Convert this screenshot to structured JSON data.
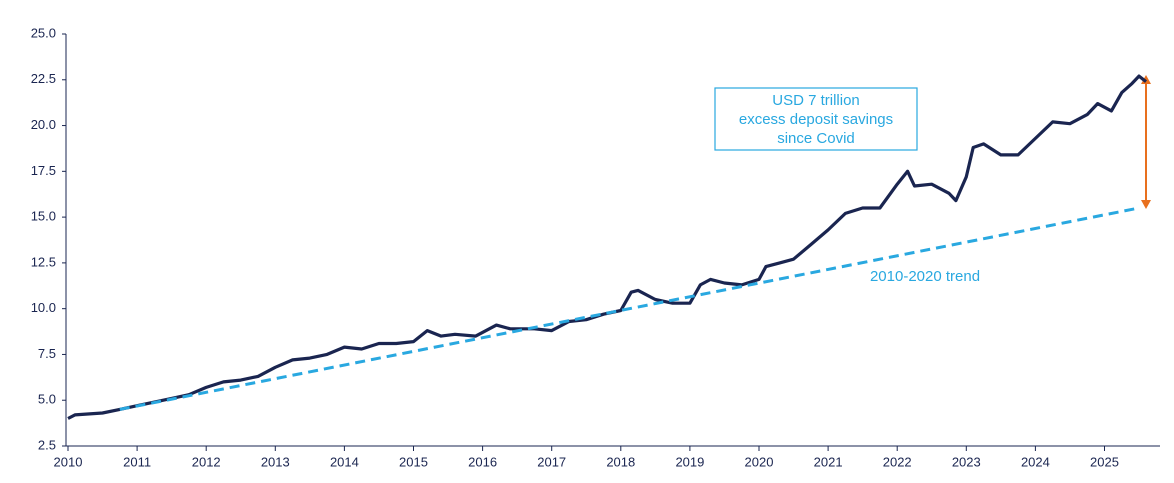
{
  "chart_data": {
    "type": "line",
    "xlim": [
      2010,
      2025.75
    ],
    "xticks": [
      2010,
      2011,
      2012,
      2013,
      2014,
      2015,
      2016,
      2017,
      2018,
      2019,
      2020,
      2021,
      2022,
      2023,
      2024,
      2025
    ],
    "ylim": [
      2.5,
      25
    ],
    "yticks": [
      2.5,
      {
        "value": 5,
        "label": "5.0"
      },
      7.5,
      {
        "value": 10,
        "label": "10.0"
      },
      12.5,
      {
        "value": 15,
        "label": "15.0"
      },
      17.5,
      {
        "value": 20,
        "label": "20.0"
      },
      22.5,
      {
        "value": 25,
        "label": "25.0"
      }
    ],
    "annotation": [
      "USD 7 trillion",
      "excess deposit savings",
      "since Covid"
    ],
    "series": [
      {
        "color": "#1a2550",
        "dashed": false,
        "x": [
          2010.0,
          2010.1,
          2010.5,
          2010.75,
          2011.0,
          2011.25,
          2011.5,
          2011.75,
          2012.0,
          2012.25,
          2012.5,
          2012.75,
          2013.0,
          2013.25,
          2013.5,
          2013.75,
          2014.0,
          2014.25,
          2014.5,
          2014.75,
          2015.0,
          2015.2,
          2015.4,
          2015.6,
          2015.9,
          2016.2,
          2016.4,
          2016.75,
          2017.0,
          2017.25,
          2017.5,
          2017.75,
          2018.0,
          2018.15,
          2018.25,
          2018.5,
          2018.75,
          2019.0,
          2019.15,
          2019.3,
          2019.5,
          2019.75,
          2020.0,
          2020.1,
          2020.3,
          2020.5,
          2020.75,
          2021.0,
          2021.25,
          2021.5,
          2021.75,
          2022.0,
          2022.15,
          2022.25,
          2022.5,
          2022.75,
          2022.85,
          2023.0,
          2023.1,
          2023.25,
          2023.5,
          2023.75,
          2024.0,
          2024.25,
          2024.5,
          2024.75,
          2024.9,
          2025.1,
          2025.25,
          2025.4,
          2025.5,
          2025.6
        ],
        "values": [
          4.0,
          4.2,
          4.3,
          4.5,
          4.7,
          4.9,
          5.1,
          5.3,
          5.7,
          6.0,
          6.1,
          6.3,
          6.8,
          7.2,
          7.3,
          7.5,
          7.9,
          7.8,
          8.1,
          8.1,
          8.2,
          8.8,
          8.5,
          8.6,
          8.5,
          9.1,
          8.9,
          8.9,
          8.8,
          9.3,
          9.4,
          9.7,
          9.9,
          10.9,
          11.0,
          10.5,
          10.3,
          10.3,
          11.3,
          11.6,
          11.4,
          11.3,
          11.6,
          12.3,
          12.5,
          12.7,
          13.5,
          14.3,
          15.2,
          15.5,
          15.5,
          16.8,
          17.5,
          16.7,
          16.8,
          16.3,
          15.9,
          17.2,
          18.8,
          19.0,
          18.4,
          18.4,
          19.3,
          20.2,
          20.1,
          20.6,
          21.2,
          20.8,
          21.8,
          22.3,
          22.7,
          22.4
        ]
      },
      {
        "name": "2010-2020 trend",
        "color": "#29a8e0",
        "dashed": true,
        "x": [
          2010.75,
          2025.5
        ],
        "values": [
          4.5,
          15.5
        ]
      }
    ]
  }
}
